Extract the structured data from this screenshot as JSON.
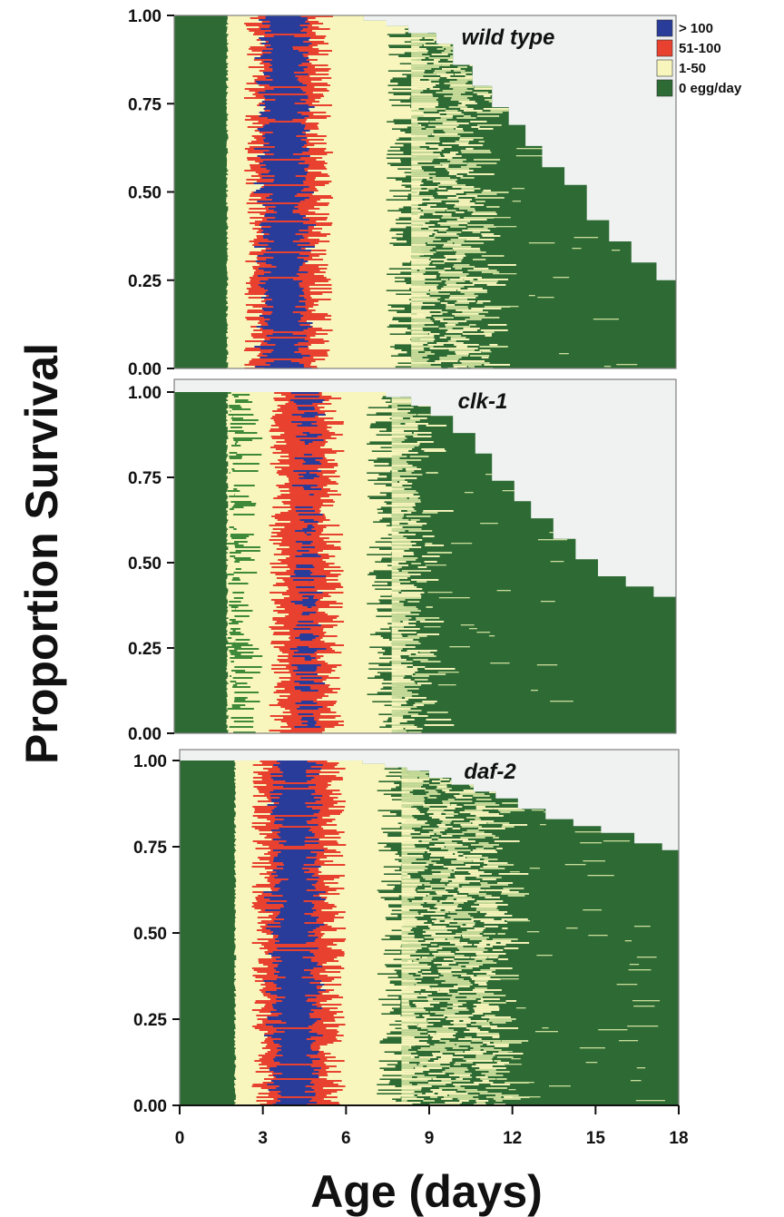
{
  "chart_data": {
    "type": "heatmap",
    "figure_type": "event-history survival chart (multi-panel)",
    "xlabel": "Age (days)",
    "ylabel": "Proportion Survival",
    "xlim": [
      0,
      18
    ],
    "ylim": [
      0,
      1
    ],
    "x_ticks": [
      "0",
      "3",
      "6",
      "9",
      "12",
      "15",
      "18"
    ],
    "y_ticks": [
      "0.00",
      "0.25",
      "0.50",
      "0.75",
      "1.00"
    ],
    "legend": {
      "placement": "top-right",
      "entries": [
        {
          "label": "> 100",
          "color": "#2a3c9a"
        },
        {
          "label": "51-100",
          "color": "#e8412f"
        },
        {
          "label": "1-50",
          "color": "#f8f6bc"
        },
        {
          "label": "0 egg/day",
          "color": "#2e6b34"
        }
      ]
    },
    "background_color": "#eff2f1",
    "panels": [
      {
        "name": "wild type",
        "zero_egg_until_day": 1.9,
        "survival_steps": [
          [
            6.2,
            1.0
          ],
          [
            6.8,
            0.985
          ],
          [
            7.6,
            0.97
          ],
          [
            8.4,
            0.95
          ],
          [
            9.4,
            0.92
          ],
          [
            10.0,
            0.86
          ],
          [
            10.7,
            0.8
          ],
          [
            11.4,
            0.74
          ],
          [
            12.0,
            0.69
          ],
          [
            12.6,
            0.63
          ],
          [
            13.2,
            0.57
          ],
          [
            14.0,
            0.52
          ],
          [
            14.8,
            0.42
          ],
          [
            15.6,
            0.36
          ],
          [
            16.4,
            0.3
          ],
          [
            17.3,
            0.25
          ],
          [
            18.0,
            0.23
          ]
        ],
        "zones": [
          {
            "age": [
              0,
              1.9
            ],
            "eggs": "0 egg/day"
          },
          {
            "age": [
              1.9,
              2.7
            ],
            "eggs": "1-50"
          },
          {
            "age": [
              2.7,
              5.4
            ],
            "eggs": "51-100 / > 100"
          },
          {
            "age": [
              5.4,
              8.3
            ],
            "eggs": "1-50"
          },
          {
            "age": [
              8.3,
              10.9
            ],
            "eggs": "1-50 / 0 egg/day"
          },
          {
            "age": [
              10.9,
              18
            ],
            "eggs": "0 egg/day"
          }
        ]
      },
      {
        "name": "clk-1",
        "zero_egg_until_day": 1.9,
        "survival_steps": [
          [
            6.8,
            1.0
          ],
          [
            7.6,
            0.985
          ],
          [
            8.5,
            0.96
          ],
          [
            9.2,
            0.93
          ],
          [
            10.0,
            0.88
          ],
          [
            10.8,
            0.82
          ],
          [
            11.4,
            0.74
          ],
          [
            12.2,
            0.68
          ],
          [
            12.8,
            0.63
          ],
          [
            13.6,
            0.57
          ],
          [
            14.4,
            0.51
          ],
          [
            15.2,
            0.46
          ],
          [
            16.2,
            0.43
          ],
          [
            17.2,
            0.4
          ],
          [
            18.0,
            0.39
          ]
        ],
        "zones": [
          {
            "age": [
              0,
              1.9
            ],
            "eggs": "0 egg/day"
          },
          {
            "age": [
              1.9,
              2.9
            ],
            "eggs": "1-50 / 0 egg/day"
          },
          {
            "age": [
              2.9,
              3.6
            ],
            "eggs": "1-50"
          },
          {
            "age": [
              3.6,
              5.8
            ],
            "eggs": "51-100 / > 100"
          },
          {
            "age": [
              5.8,
              7.6
            ],
            "eggs": "1-50"
          },
          {
            "age": [
              7.6,
              8.7
            ],
            "eggs": "1-50 / 0 egg/day"
          },
          {
            "age": [
              8.7,
              18
            ],
            "eggs": "0 egg/day"
          }
        ]
      },
      {
        "name": "daf-2",
        "zero_egg_until_day": 2.0,
        "survival_steps": [
          [
            5.8,
            1.0
          ],
          [
            6.6,
            0.99
          ],
          [
            7.4,
            0.98
          ],
          [
            8.2,
            0.97
          ],
          [
            9.0,
            0.95
          ],
          [
            9.8,
            0.93
          ],
          [
            10.6,
            0.91
          ],
          [
            11.4,
            0.89
          ],
          [
            12.2,
            0.86
          ],
          [
            13.2,
            0.83
          ],
          [
            14.2,
            0.81
          ],
          [
            15.2,
            0.79
          ],
          [
            16.4,
            0.76
          ],
          [
            17.4,
            0.74
          ],
          [
            18.0,
            0.73
          ]
        ],
        "zones": [
          {
            "age": [
              0,
              2.0
            ],
            "eggs": "0 egg/day"
          },
          {
            "age": [
              2.0,
              2.8
            ],
            "eggs": "1-50"
          },
          {
            "age": [
              2.8,
              5.7
            ],
            "eggs": "51-100 / > 100"
          },
          {
            "age": [
              5.7,
              7.8
            ],
            "eggs": "1-50"
          },
          {
            "age": [
              7.8,
              11.5
            ],
            "eggs": "1-50 / 0 egg/day"
          },
          {
            "age": [
              11.5,
              18
            ],
            "eggs": "0 egg/day"
          }
        ]
      }
    ]
  }
}
